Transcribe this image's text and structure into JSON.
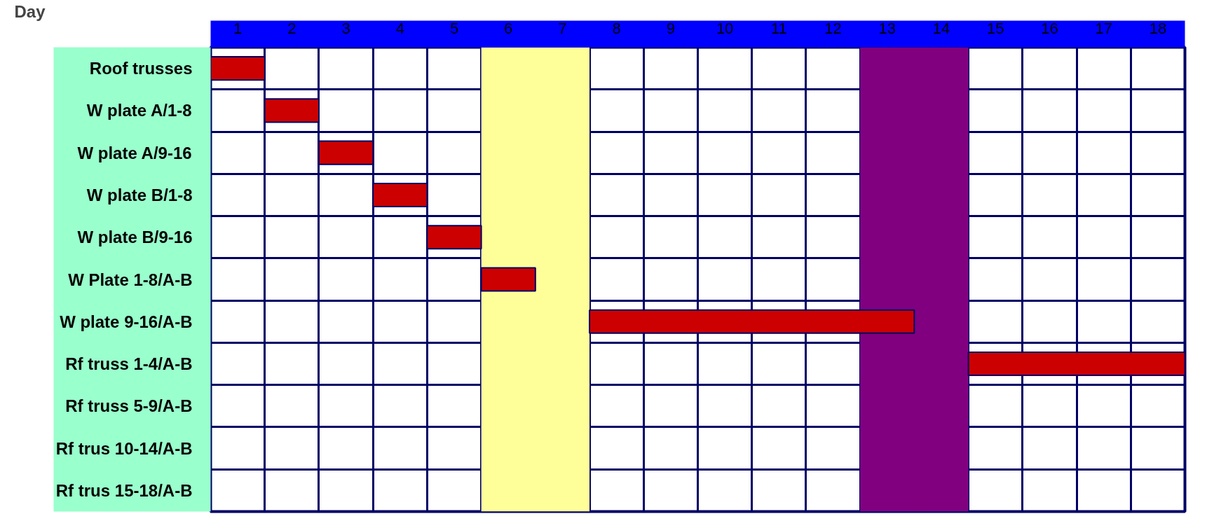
{
  "chart_data": {
    "type": "bar",
    "orientation": "horizontal",
    "xlabel": "Day",
    "categories": [
      "Roof trusses",
      "W plate A/1-8",
      "W plate A/9-16",
      "W plate B/1-8",
      "W plate B/9-16",
      "W Plate 1-8/A-B",
      "W plate 9-16/A-B",
      "Rf truss 1-4/A-B",
      "Rf truss 5-9/A-B",
      "Rf trus 10-14/A-B",
      "Rf trus 15-18/A-B"
    ],
    "base": [
      0.5,
      1.5,
      2.5,
      3.5,
      4.5,
      5.5,
      7.5,
      14.5,
      null,
      null,
      null
    ],
    "values": [
      1,
      1,
      1,
      1,
      1,
      1,
      6,
      4,
      null,
      null,
      null
    ],
    "color": "#cc0000",
    "xlim": [
      0.5,
      18.5
    ],
    "xticks": [
      1,
      2,
      3,
      4,
      5,
      6,
      7,
      8,
      9,
      10,
      11,
      12,
      13,
      14,
      15,
      16,
      17,
      18
    ],
    "bands": [
      {
        "axis": "x",
        "from": 5.5,
        "to": 7.5,
        "color": "#ffff99"
      },
      {
        "axis": "x",
        "from": 12.5,
        "to": 14.5,
        "color": "#800080"
      }
    ],
    "grid": true
  }
}
